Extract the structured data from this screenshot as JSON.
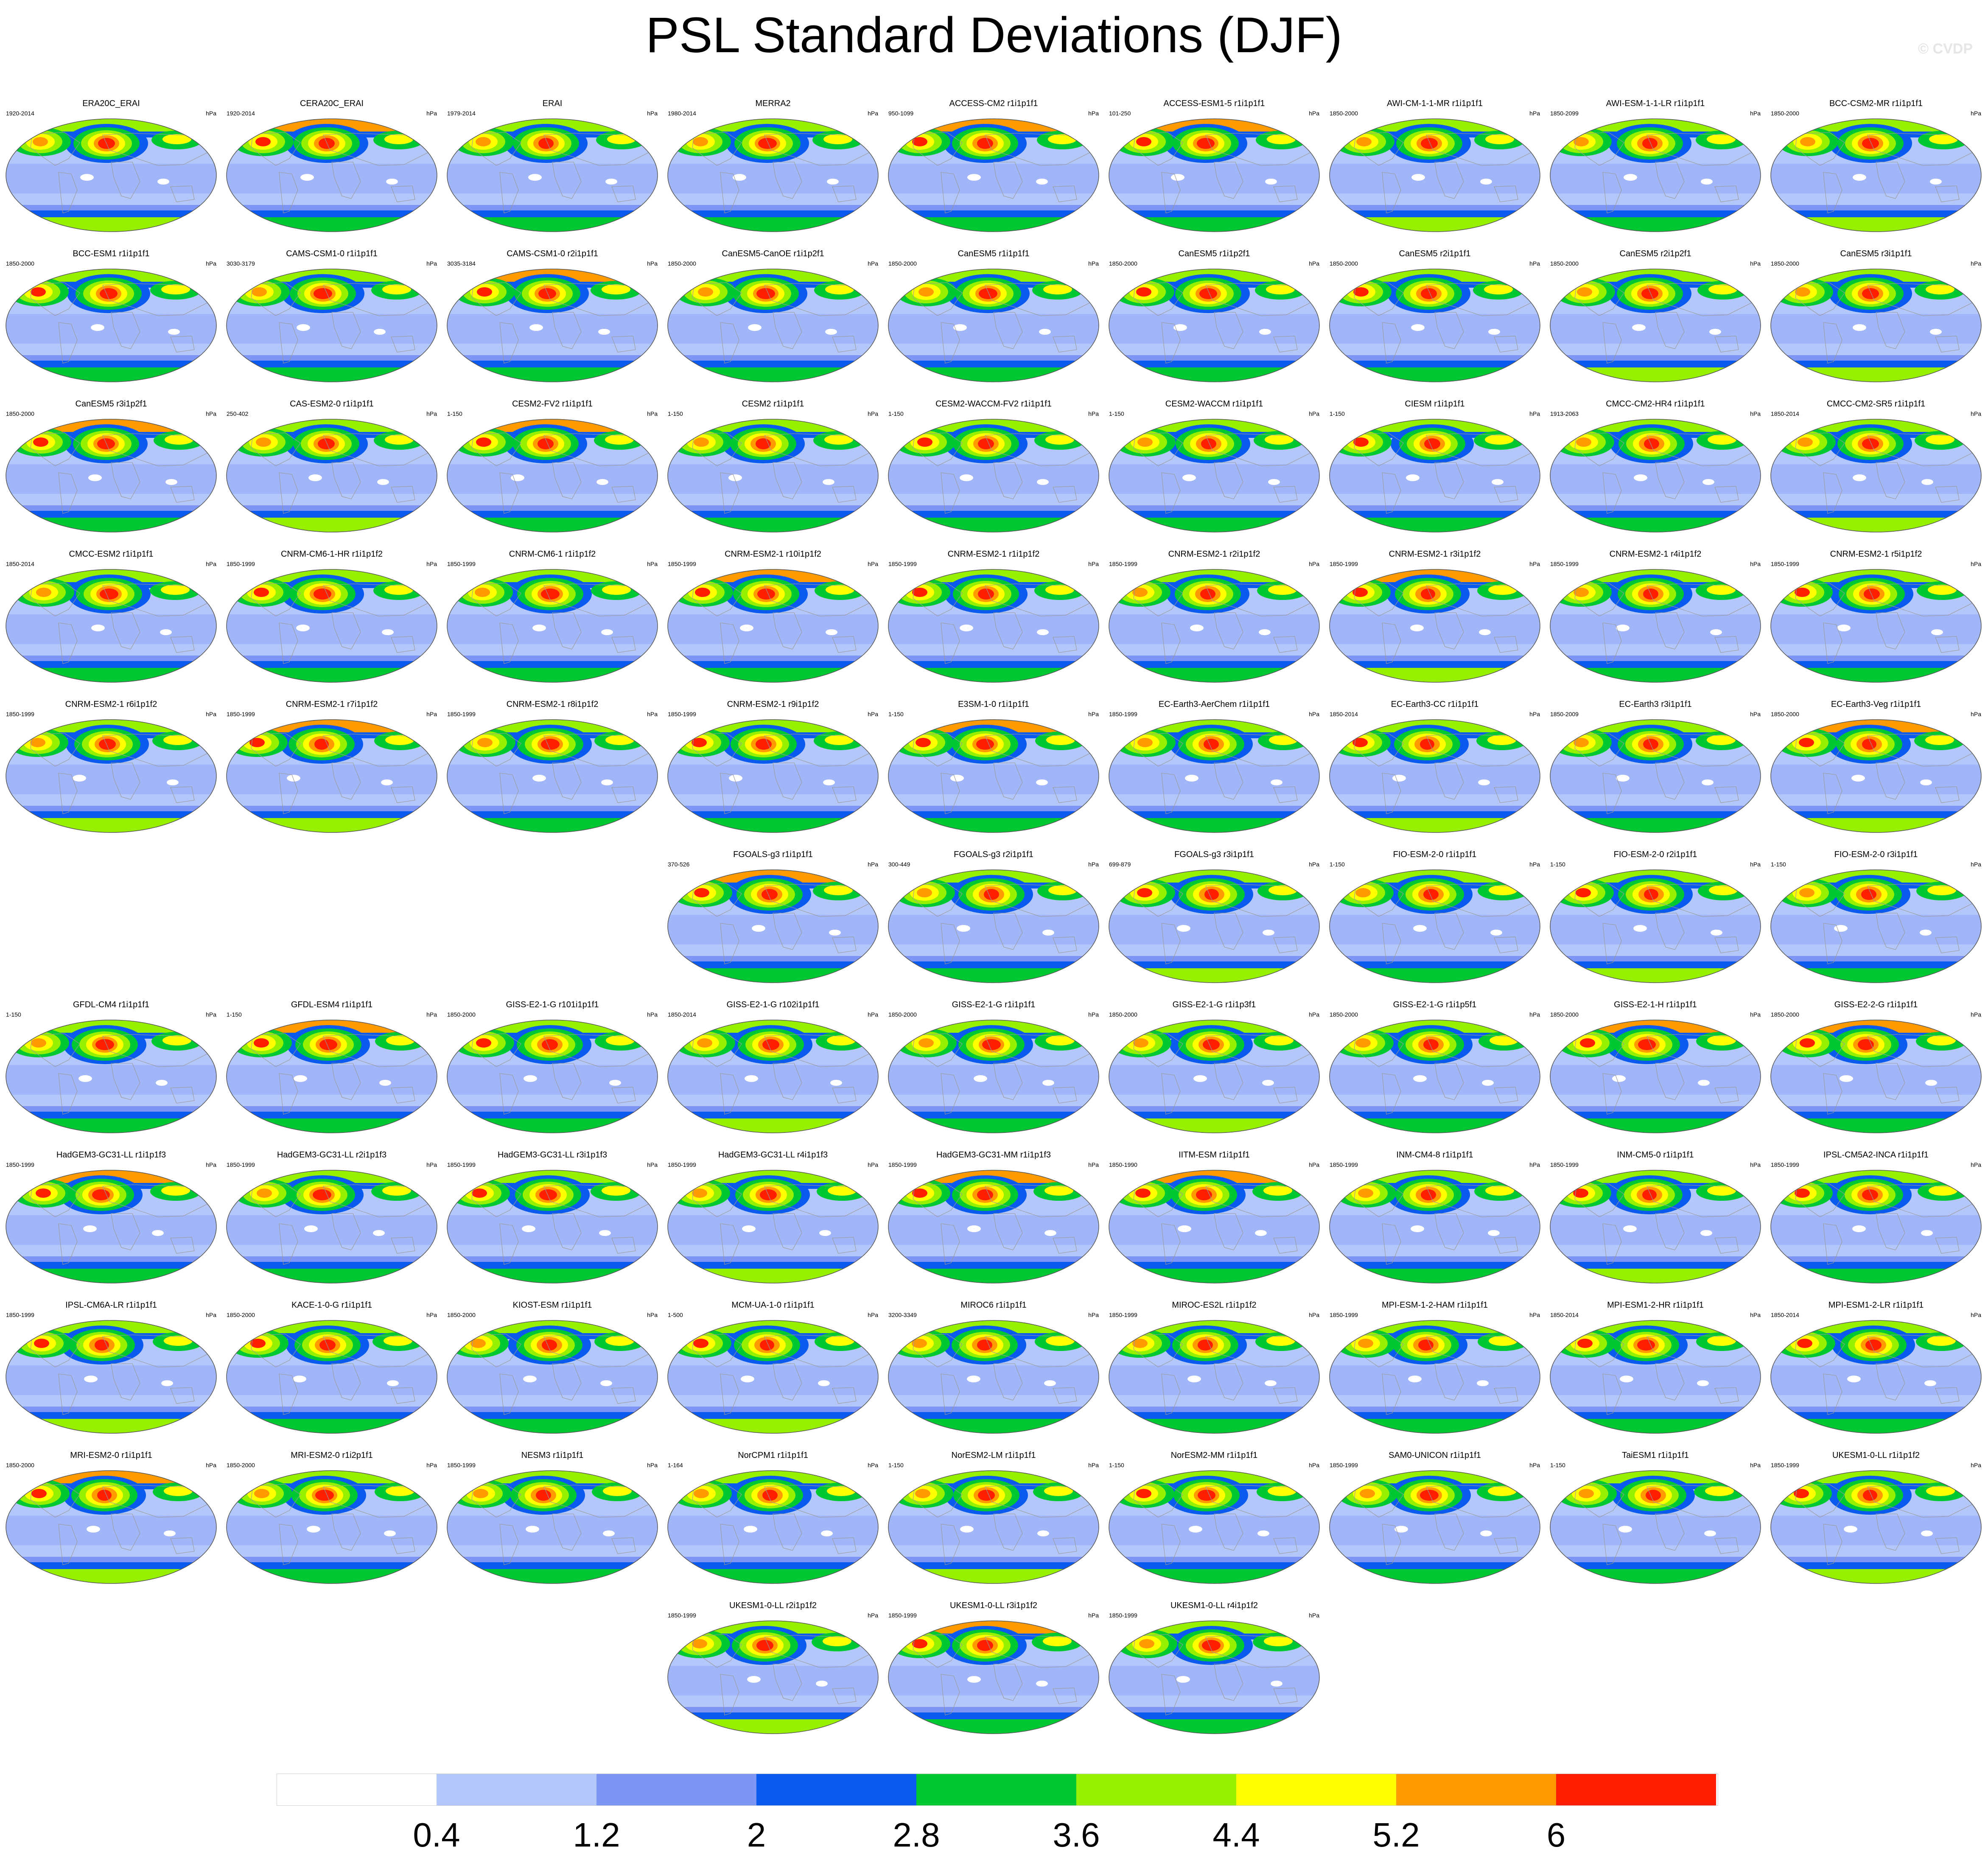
{
  "title": "PSL Standard Deviations (DJF)",
  "watermark": "© CVDP",
  "units": "hPa",
  "colorbar": {
    "labels": [
      "0.4",
      "1.2",
      "2",
      "2.8",
      "3.6",
      "4.4",
      "5.2",
      "6"
    ],
    "colors": [
      "#ffffff",
      "#b4c7fa",
      "#7d96f5",
      "#0a5af0",
      "#00c832",
      "#96f000",
      "#ffff00",
      "#ff9b00",
      "#ff1e00"
    ]
  },
  "rows": [
    {
      "grid_start": 0,
      "panels": [
        {
          "name": "ERA20C_ERAI",
          "years": "1920-2014"
        },
        {
          "name": "CERA20C_ERAI",
          "years": "1920-2014"
        },
        {
          "name": "ERAI",
          "years": "1979-2014"
        },
        {
          "name": "MERRA2",
          "years": "1980-2014"
        },
        {
          "name": "ACCESS-CM2 r1i1p1f1",
          "years": "950-1099"
        },
        {
          "name": "ACCESS-ESM1-5 r1i1p1f1",
          "years": "101-250"
        },
        {
          "name": "AWI-CM-1-1-MR r1i1p1f1",
          "years": "1850-2000"
        },
        {
          "name": "AWI-ESM-1-1-LR r1i1p1f1",
          "years": "1850-2099"
        },
        {
          "name": "BCC-CSM2-MR r1i1p1f1",
          "years": "1850-2000"
        }
      ]
    },
    {
      "grid_start": 0,
      "panels": [
        {
          "name": "BCC-ESM1 r1i1p1f1",
          "years": "1850-2000"
        },
        {
          "name": "CAMS-CSM1-0 r1i1p1f1",
          "years": "3030-3179"
        },
        {
          "name": "CAMS-CSM1-0 r2i1p1f1",
          "years": "3035-3184"
        },
        {
          "name": "CanESM5-CanOE r1i1p2f1",
          "years": "1850-2000"
        },
        {
          "name": "CanESM5 r1i1p1f1",
          "years": "1850-2000"
        },
        {
          "name": "CanESM5 r1i1p2f1",
          "years": "1850-2000"
        },
        {
          "name": "CanESM5 r2i1p1f1",
          "years": "1850-2000"
        },
        {
          "name": "CanESM5 r2i1p2f1",
          "years": "1850-2000"
        },
        {
          "name": "CanESM5 r3i1p1f1",
          "years": "1850-2000"
        }
      ]
    },
    {
      "grid_start": 0,
      "panels": [
        {
          "name": "CanESM5 r3i1p2f1",
          "years": "1850-2000"
        },
        {
          "name": "CAS-ESM2-0 r1i1p1f1",
          "years": "250-402"
        },
        {
          "name": "CESM2-FV2 r1i1p1f1",
          "years": "1-150"
        },
        {
          "name": "CESM2 r1i1p1f1",
          "years": "1-150"
        },
        {
          "name": "CESM2-WACCM-FV2 r1i1p1f1",
          "years": "1-150"
        },
        {
          "name": "CESM2-WACCM r1i1p1f1",
          "years": "1-150"
        },
        {
          "name": "CIESM r1i1p1f1",
          "years": "1-150"
        },
        {
          "name": "CMCC-CM2-HR4 r1i1p1f1",
          "years": "1913-2063"
        },
        {
          "name": "CMCC-CM2-SR5 r1i1p1f1",
          "years": "1850-2014"
        }
      ]
    },
    {
      "grid_start": 0,
      "panels": [
        {
          "name": "CMCC-ESM2 r1i1p1f1",
          "years": "1850-2014"
        },
        {
          "name": "CNRM-CM6-1-HR r1i1p1f2",
          "years": "1850-1999"
        },
        {
          "name": "CNRM-CM6-1 r1i1p1f2",
          "years": "1850-1999"
        },
        {
          "name": "CNRM-ESM2-1 r10i1p1f2",
          "years": "1850-1999"
        },
        {
          "name": "CNRM-ESM2-1 r1i1p1f2",
          "years": "1850-1999"
        },
        {
          "name": "CNRM-ESM2-1 r2i1p1f2",
          "years": "1850-1999"
        },
        {
          "name": "CNRM-ESM2-1 r3i1p1f2",
          "years": "1850-1999"
        },
        {
          "name": "CNRM-ESM2-1 r4i1p1f2",
          "years": "1850-1999"
        },
        {
          "name": "CNRM-ESM2-1 r5i1p1f2",
          "years": "1850-1999"
        }
      ]
    },
    {
      "grid_start": 0,
      "panels": [
        {
          "name": "CNRM-ESM2-1 r6i1p1f2",
          "years": "1850-1999"
        },
        {
          "name": "CNRM-ESM2-1 r7i1p1f2",
          "years": "1850-1999"
        },
        {
          "name": "CNRM-ESM2-1 r8i1p1f2",
          "years": "1850-1999"
        },
        {
          "name": "CNRM-ESM2-1 r9i1p1f2",
          "years": "1850-1999"
        },
        {
          "name": "E3SM-1-0 r1i1p1f1",
          "years": "1-150"
        },
        {
          "name": "EC-Earth3-AerChem r1i1p1f1",
          "years": "1850-1999"
        },
        {
          "name": "EC-Earth3-CC r1i1p1f1",
          "years": "1850-2014"
        },
        {
          "name": "EC-Earth3 r3i1p1f1",
          "years": "1850-2009"
        },
        {
          "name": "EC-Earth3-Veg r1i1p1f1",
          "years": "1850-2000"
        }
      ]
    },
    {
      "grid_start": 3,
      "panels": [
        {
          "name": "FGOALS-g3 r1i1p1f1",
          "years": "370-526"
        },
        {
          "name": "FGOALS-g3 r2i1p1f1",
          "years": "300-449"
        },
        {
          "name": "FGOALS-g3 r3i1p1f1",
          "years": "699-879"
        },
        {
          "name": "FIO-ESM-2-0 r1i1p1f1",
          "years": "1-150"
        },
        {
          "name": "FIO-ESM-2-0 r2i1p1f1",
          "years": "1-150"
        },
        {
          "name": "FIO-ESM-2-0 r3i1p1f1",
          "years": "1-150"
        }
      ]
    },
    {
      "grid_start": 0,
      "panels": [
        {
          "name": "GFDL-CM4 r1i1p1f1",
          "years": "1-150"
        },
        {
          "name": "GFDL-ESM4 r1i1p1f1",
          "years": "1-150"
        },
        {
          "name": "GISS-E2-1-G r101i1p1f1",
          "years": "1850-2000"
        },
        {
          "name": "GISS-E2-1-G r102i1p1f1",
          "years": "1850-2014"
        },
        {
          "name": "GISS-E2-1-G r1i1p1f1",
          "years": "1850-2000"
        },
        {
          "name": "GISS-E2-1-G r1i1p3f1",
          "years": "1850-2000"
        },
        {
          "name": "GISS-E2-1-G r1i1p5f1",
          "years": "1850-2000"
        },
        {
          "name": "GISS-E2-1-H r1i1p1f1",
          "years": "1850-2000"
        },
        {
          "name": "GISS-E2-2-G r1i1p1f1",
          "years": "1850-2000"
        }
      ]
    },
    {
      "grid_start": 0,
      "panels": [
        {
          "name": "HadGEM3-GC31-LL r1i1p1f3",
          "years": "1850-1999"
        },
        {
          "name": "HadGEM3-GC31-LL r2i1p1f3",
          "years": "1850-1999"
        },
        {
          "name": "HadGEM3-GC31-LL r3i1p1f3",
          "years": "1850-1999"
        },
        {
          "name": "HadGEM3-GC31-LL r4i1p1f3",
          "years": "1850-1999"
        },
        {
          "name": "HadGEM3-GC31-MM r1i1p1f3",
          "years": "1850-1999"
        },
        {
          "name": "IITM-ESM r1i1p1f1",
          "years": "1850-1990"
        },
        {
          "name": "INM-CM4-8 r1i1p1f1",
          "years": "1850-1999"
        },
        {
          "name": "INM-CM5-0 r1i1p1f1",
          "years": "1850-1999"
        },
        {
          "name": "IPSL-CM5A2-INCA r1i1p1f1",
          "years": "1850-1999"
        }
      ]
    },
    {
      "grid_start": 0,
      "panels": [
        {
          "name": "IPSL-CM6A-LR r1i1p1f1",
          "years": "1850-1999"
        },
        {
          "name": "KACE-1-0-G r1i1p1f1",
          "years": "1850-2000"
        },
        {
          "name": "KIOST-ESM r1i1p1f1",
          "years": "1850-2000"
        },
        {
          "name": "MCM-UA-1-0 r1i1p1f1",
          "years": "1-500"
        },
        {
          "name": "MIROC6 r1i1p1f1",
          "years": "3200-3349"
        },
        {
          "name": "MIROC-ES2L r1i1p1f2",
          "years": "1850-1999"
        },
        {
          "name": "MPI-ESM-1-2-HAM r1i1p1f1",
          "years": "1850-1999"
        },
        {
          "name": "MPI-ESM1-2-HR r1i1p1f1",
          "years": "1850-2014"
        },
        {
          "name": "MPI-ESM1-2-LR r1i1p1f1",
          "years": "1850-2014"
        }
      ]
    },
    {
      "grid_start": 0,
      "panels": [
        {
          "name": "MRI-ESM2-0 r1i1p1f1",
          "years": "1850-2000"
        },
        {
          "name": "MRI-ESM2-0 r1i2p1f1",
          "years": "1850-2000"
        },
        {
          "name": "NESM3 r1i1p1f1",
          "years": "1850-1999"
        },
        {
          "name": "NorCPM1 r1i1p1f1",
          "years": "1-164"
        },
        {
          "name": "NorESM2-LM r1i1p1f1",
          "years": "1-150"
        },
        {
          "name": "NorESM2-MM r1i1p1f1",
          "years": "1-150"
        },
        {
          "name": "SAM0-UNICON r1i1p1f1",
          "years": "1850-1999"
        },
        {
          "name": "TaiESM1 r1i1p1f1",
          "years": "1-150"
        },
        {
          "name": "UKESM1-0-LL r1i1p1f2",
          "years": "1850-1999"
        }
      ]
    },
    {
      "grid_start": 3,
      "panels": [
        {
          "name": "UKESM1-0-LL r2i1p1f2",
          "years": "1850-1999"
        },
        {
          "name": "UKESM1-0-LL r3i1p1f2",
          "years": "1850-1999"
        },
        {
          "name": "UKESM1-0-LL r4i1p1f2",
          "years": "1850-1999"
        }
      ]
    }
  ]
}
